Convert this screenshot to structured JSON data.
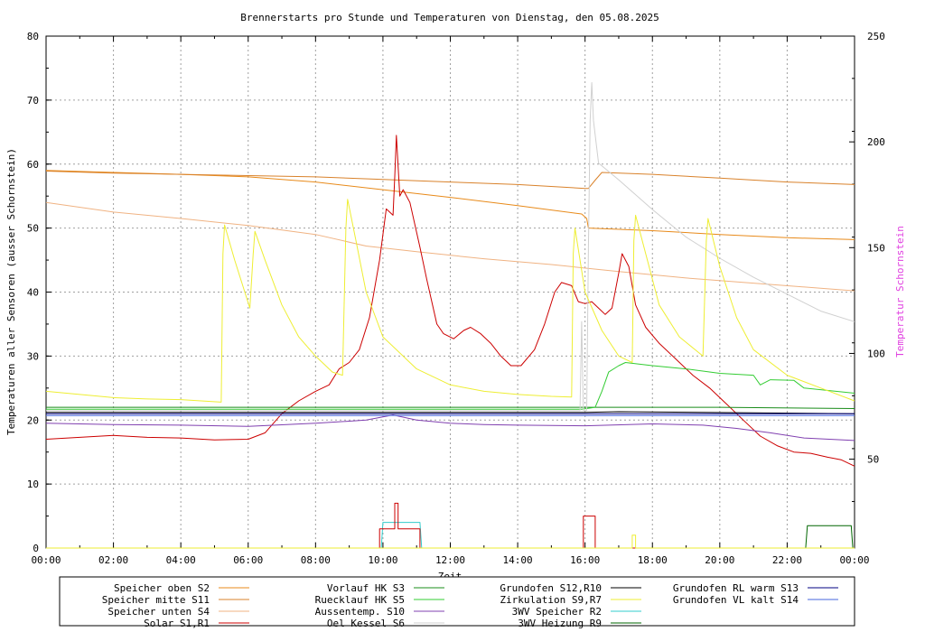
{
  "chart_data": {
    "type": "line",
    "title": "Brennerstarts pro Stunde und Temperaturen von Dienstag, den 05.08.2025",
    "xlabel": "Zeit",
    "ylabel": "Temperaturen aller Sensoren (ausser Schornstein)",
    "y2label": "Temperatur Schornstein",
    "xlim": [
      0,
      24
    ],
    "ylim": [
      0,
      80
    ],
    "y2lim": [
      8,
      250
    ],
    "x_ticks": [
      "00:00",
      "02:00",
      "04:00",
      "06:00",
      "08:00",
      "10:00",
      "12:00",
      "14:00",
      "16:00",
      "18:00",
      "20:00",
      "22:00",
      "00:00"
    ],
    "y_ticks": [
      "0",
      "10",
      "20",
      "30",
      "40",
      "50",
      "60",
      "70",
      "80"
    ],
    "y2_ticks": [
      "50",
      "100",
      "150",
      "200",
      "250"
    ],
    "y2_tick_values": [
      50,
      100,
      150,
      200,
      250
    ],
    "grid": true,
    "legend_placement": "bottom",
    "series": [
      {
        "name": "Speicher oben  S2",
        "color": "#e88a1a",
        "axis": "y1",
        "points": [
          [
            0,
            59
          ],
          [
            2,
            58.7
          ],
          [
            4,
            58.4
          ],
          [
            6,
            58
          ],
          [
            8,
            57.2
          ],
          [
            10,
            56
          ],
          [
            12,
            54.8
          ],
          [
            14,
            53.5
          ],
          [
            15.9,
            52.2
          ],
          [
            16.05,
            51.5
          ],
          [
            16.1,
            50
          ],
          [
            18,
            49.6
          ],
          [
            20,
            49
          ],
          [
            22,
            48.5
          ],
          [
            24,
            48.2
          ]
        ]
      },
      {
        "name": "Speicher mitte S11",
        "color": "#d9822b",
        "axis": "y1",
        "points": [
          [
            0,
            58.9
          ],
          [
            2,
            58.6
          ],
          [
            4,
            58.4
          ],
          [
            6,
            58.2
          ],
          [
            8,
            58
          ],
          [
            10,
            57.6
          ],
          [
            12,
            57.2
          ],
          [
            14,
            56.8
          ],
          [
            16,
            56.2
          ],
          [
            16.1,
            56.2
          ],
          [
            16.3,
            57.5
          ],
          [
            16.5,
            58.7
          ],
          [
            18,
            58.4
          ],
          [
            20,
            57.8
          ],
          [
            22,
            57.2
          ],
          [
            24,
            56.8
          ]
        ]
      },
      {
        "name": "Speicher unten S4",
        "color": "#f0b383",
        "axis": "y1",
        "points": [
          [
            0,
            54
          ],
          [
            2,
            52.5
          ],
          [
            4,
            51.5
          ],
          [
            6,
            50.4
          ],
          [
            8,
            49
          ],
          [
            9.5,
            47.2
          ],
          [
            11,
            46.3
          ],
          [
            13,
            45.2
          ],
          [
            15,
            44.3
          ],
          [
            17,
            43.2
          ],
          [
            19,
            42.2
          ],
          [
            21,
            41.4
          ],
          [
            24,
            40.2
          ]
        ]
      },
      {
        "name": "Solar       S1,R1",
        "color": "#cc0000",
        "axis": "y1",
        "points": [
          [
            0,
            17
          ],
          [
            1,
            17.3
          ],
          [
            2,
            17.6
          ],
          [
            3,
            17.3
          ],
          [
            4,
            17.2
          ],
          [
            5,
            16.9
          ],
          [
            6,
            17
          ],
          [
            6.5,
            18
          ],
          [
            7,
            21
          ],
          [
            7.5,
            23
          ],
          [
            8,
            24.5
          ],
          [
            8.4,
            25.5
          ],
          [
            8.7,
            28
          ],
          [
            9,
            29
          ],
          [
            9.3,
            31
          ],
          [
            9.6,
            36
          ],
          [
            9.9,
            45
          ],
          [
            10.1,
            53
          ],
          [
            10.3,
            52
          ],
          [
            10.35,
            58
          ],
          [
            10.4,
            64.5
          ],
          [
            10.5,
            55
          ],
          [
            10.6,
            56
          ],
          [
            10.8,
            54
          ],
          [
            11.1,
            47
          ],
          [
            11.3,
            42
          ],
          [
            11.6,
            35
          ],
          [
            11.8,
            33.5
          ],
          [
            12.1,
            32.7
          ],
          [
            12.4,
            34
          ],
          [
            12.6,
            34.5
          ],
          [
            12.9,
            33.5
          ],
          [
            13.2,
            32
          ],
          [
            13.5,
            30
          ],
          [
            13.8,
            28.5
          ],
          [
            14.1,
            28.5
          ],
          [
            14.5,
            31
          ],
          [
            14.8,
            35
          ],
          [
            15.1,
            40
          ],
          [
            15.3,
            41.5
          ],
          [
            15.6,
            41
          ],
          [
            15.8,
            38.5
          ],
          [
            16,
            38.2
          ],
          [
            16.2,
            38.5
          ],
          [
            16.4,
            37.5
          ],
          [
            16.6,
            36.5
          ],
          [
            16.8,
            37.5
          ],
          [
            17,
            43
          ],
          [
            17.1,
            46
          ],
          [
            17.3,
            44
          ],
          [
            17.5,
            38
          ],
          [
            17.8,
            34.5
          ],
          [
            18.2,
            32
          ],
          [
            18.7,
            29.5
          ],
          [
            19.2,
            27
          ],
          [
            19.7,
            25
          ],
          [
            20.2,
            22.5
          ],
          [
            20.7,
            20
          ],
          [
            21.2,
            17.5
          ],
          [
            21.7,
            16
          ],
          [
            22.2,
            15
          ],
          [
            22.7,
            14.8
          ],
          [
            23.2,
            14.2
          ],
          [
            23.6,
            13.8
          ],
          [
            24,
            12.8
          ]
        ]
      },
      {
        "name": "Vorlauf HK     S3",
        "color": "#1a8c1a",
        "axis": "y1",
        "points": [
          [
            0,
            22
          ],
          [
            4,
            22
          ],
          [
            8,
            22
          ],
          [
            12,
            22
          ],
          [
            16,
            22
          ],
          [
            17,
            22
          ],
          [
            20,
            22
          ],
          [
            24,
            21.8
          ]
        ]
      },
      {
        "name": "Ruecklauf HK   S5",
        "color": "#33cc33",
        "axis": "y1",
        "points": [
          [
            0,
            21.7
          ],
          [
            15.9,
            21.7
          ],
          [
            16.3,
            22
          ],
          [
            16.5,
            24.5
          ],
          [
            16.7,
            27.5
          ],
          [
            17,
            28.5
          ],
          [
            17.2,
            29
          ],
          [
            18,
            28.5
          ],
          [
            19,
            28
          ],
          [
            20,
            27.3
          ],
          [
            21,
            27
          ],
          [
            21.2,
            25.5
          ],
          [
            21.5,
            26.3
          ],
          [
            22.2,
            26.2
          ],
          [
            22.5,
            25
          ],
          [
            24,
            24.2
          ]
        ]
      },
      {
        "name": "Aussentemp.   S10",
        "color": "#8040b0",
        "axis": "y1",
        "points": [
          [
            0,
            19.5
          ],
          [
            2,
            19.3
          ],
          [
            4,
            19.2
          ],
          [
            6,
            19
          ],
          [
            8,
            19.5
          ],
          [
            9.5,
            20
          ],
          [
            10.3,
            20.8
          ],
          [
            11,
            20
          ],
          [
            12,
            19.5
          ],
          [
            13,
            19.3
          ],
          [
            14,
            19.2
          ],
          [
            16,
            19.1
          ],
          [
            18,
            19.4
          ],
          [
            19.5,
            19.2
          ],
          [
            20.5,
            18.7
          ],
          [
            21.5,
            18
          ],
          [
            22.5,
            17.2
          ],
          [
            24,
            16.8
          ]
        ]
      },
      {
        "name": "Oel Kessel     S6",
        "color": "#d0d0d0",
        "axis": "y2",
        "points": [
          [
            0,
            73
          ],
          [
            15.85,
            73
          ],
          [
            15.9,
            115
          ],
          [
            15.95,
            73
          ],
          [
            16.05,
            73
          ],
          [
            16.1,
            150
          ],
          [
            16.15,
            210
          ],
          [
            16.2,
            228
          ],
          [
            16.25,
            210
          ],
          [
            16.4,
            190
          ],
          [
            17,
            182
          ],
          [
            18,
            168
          ],
          [
            19,
            155
          ],
          [
            20,
            145
          ],
          [
            21,
            136
          ],
          [
            22,
            128
          ],
          [
            23,
            120
          ],
          [
            24,
            115
          ]
        ]
      },
      {
        "name": "Grundofen    S12,R10",
        "color": "#000000",
        "axis": "y1",
        "points": [
          [
            0,
            21.2
          ],
          [
            16,
            21.2
          ],
          [
            17,
            21.3
          ],
          [
            24,
            21
          ]
        ]
      },
      {
        "name": "Zirkulation   S9,R7",
        "color": "#eeee33",
        "axis": "y1",
        "points": [
          [
            0,
            24.5
          ],
          [
            1,
            24
          ],
          [
            2,
            23.5
          ],
          [
            3,
            23.3
          ],
          [
            4,
            23.2
          ],
          [
            5.2,
            22.8
          ],
          [
            5.25,
            46
          ],
          [
            5.3,
            50.5
          ],
          [
            5.6,
            45
          ],
          [
            5.9,
            40
          ],
          [
            6.05,
            37.5
          ],
          [
            6.15,
            46
          ],
          [
            6.2,
            49.5
          ],
          [
            6.5,
            45
          ],
          [
            7,
            38
          ],
          [
            7.5,
            33
          ],
          [
            8,
            30
          ],
          [
            8.5,
            27.5
          ],
          [
            8.8,
            27
          ],
          [
            8.9,
            50
          ],
          [
            8.95,
            54.5
          ],
          [
            9.2,
            48
          ],
          [
            9.5,
            40
          ],
          [
            10,
            33
          ],
          [
            11,
            28
          ],
          [
            12,
            25.5
          ],
          [
            13,
            24.5
          ],
          [
            14,
            24
          ],
          [
            15,
            23.7
          ],
          [
            15.6,
            23.6
          ],
          [
            15.65,
            46
          ],
          [
            15.7,
            50
          ],
          [
            16,
            40
          ],
          [
            16.5,
            34
          ],
          [
            17,
            30
          ],
          [
            17.4,
            29
          ],
          [
            17.45,
            48
          ],
          [
            17.5,
            52
          ],
          [
            17.8,
            46
          ],
          [
            18.2,
            38
          ],
          [
            18.8,
            33
          ],
          [
            19.5,
            30
          ],
          [
            19.6,
            48
          ],
          [
            19.65,
            51.5
          ],
          [
            20,
            44
          ],
          [
            20.5,
            36
          ],
          [
            21,
            31
          ],
          [
            22,
            27
          ],
          [
            23,
            25
          ],
          [
            24,
            23
          ]
        ]
      },
      {
        "name": "3WV Speicher    R2",
        "color": "#33cccc",
        "axis": "y1",
        "points": [
          [
            0,
            0
          ],
          [
            9.95,
            0
          ],
          [
            10,
            4
          ],
          [
            11.1,
            4
          ],
          [
            11.15,
            0
          ],
          [
            24,
            0
          ]
        ]
      },
      {
        "name": "3WV Heizung   R9",
        "color": "#006600",
        "axis": "y1",
        "points": [
          [
            0,
            0
          ],
          [
            22.55,
            0
          ],
          [
            22.6,
            3.5
          ],
          [
            23.9,
            3.5
          ],
          [
            23.95,
            0
          ],
          [
            24,
            0
          ]
        ]
      },
      {
        "name": "Grundofen RL warm  S13",
        "color": "#000080",
        "axis": "y1",
        "points": [
          [
            0,
            21
          ],
          [
            12,
            21
          ],
          [
            16,
            21
          ],
          [
            18,
            21
          ],
          [
            24,
            21
          ]
        ]
      },
      {
        "name": "Grundofen VL kalt  S14",
        "color": "#4466dd",
        "axis": "y1",
        "points": [
          [
            0,
            20.7
          ],
          [
            24,
            20.7
          ]
        ]
      },
      {
        "name": "Brennerstarts",
        "color": "#cc0000",
        "axis": "y1",
        "legend": false,
        "points": [
          [
            0,
            0
          ],
          [
            9.9,
            0
          ],
          [
            9.9,
            3
          ],
          [
            10.35,
            3
          ],
          [
            10.35,
            7
          ],
          [
            10.45,
            7
          ],
          [
            10.45,
            3
          ],
          [
            11.1,
            3
          ],
          [
            11.1,
            0
          ],
          [
            15.95,
            0
          ],
          [
            15.95,
            5
          ],
          [
            16.3,
            5
          ],
          [
            16.3,
            0
          ],
          [
            24,
            0
          ]
        ]
      },
      {
        "name": "Zirkulation-Impuls",
        "color": "#eeee33",
        "axis": "y1",
        "legend": false,
        "points": [
          [
            0,
            0
          ],
          [
            17.4,
            0
          ],
          [
            17.4,
            2
          ],
          [
            17.5,
            2
          ],
          [
            17.5,
            0
          ],
          [
            24,
            0
          ]
        ]
      }
    ]
  }
}
